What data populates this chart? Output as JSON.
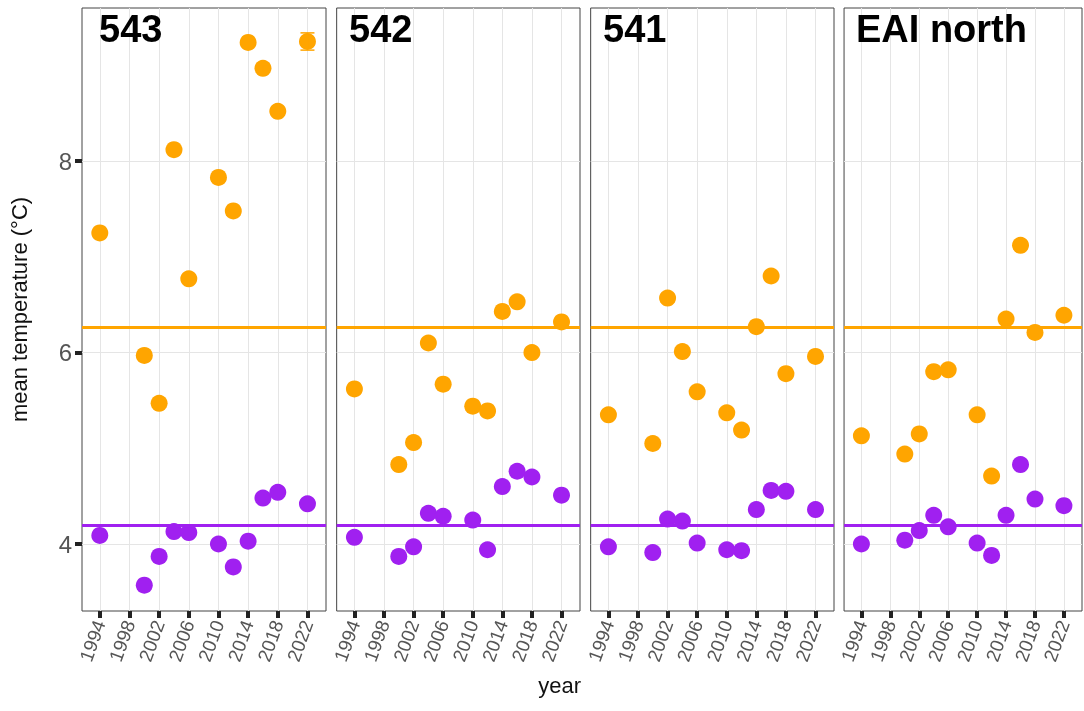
{
  "chart_data": [
    {
      "type": "scatter",
      "title": "543",
      "ylabel": "mean temperature (°C)",
      "x": [
        1994,
        2000,
        2002,
        2004,
        2006,
        2010,
        2012,
        2014,
        2016,
        2018,
        2022
      ],
      "xlim": [
        1991.6,
        2024.5
      ],
      "xticks": [
        1994,
        1998,
        2002,
        2006,
        2010,
        2014,
        2018,
        2022
      ],
      "ylim": [
        3.3,
        9.6
      ],
      "yticks": [
        4,
        6,
        8
      ],
      "grid": true,
      "marker": "circle",
      "series": [
        {
          "color": "#ffa500",
          "values": [
            7.25,
            5.97,
            5.47,
            8.12,
            6.77,
            7.83,
            7.48,
            9.24,
            8.97,
            8.52,
            9.25
          ],
          "errors": [
            null,
            null,
            null,
            null,
            null,
            null,
            null,
            null,
            0.04,
            null,
            0.09
          ]
        },
        {
          "color": "#a020f0",
          "values": [
            4.09,
            3.57,
            3.87,
            4.13,
            4.12,
            4.0,
            3.76,
            4.03,
            4.48,
            4.54,
            4.42
          ]
        }
      ],
      "ref_lines": [
        {
          "axis": "y",
          "value": 6.26,
          "color": "#ffa500"
        },
        {
          "axis": "y",
          "value": 4.2,
          "color": "#a020f0"
        }
      ]
    },
    {
      "type": "scatter",
      "title": "542",
      "xlabel": "year",
      "x": [
        1994,
        2000,
        2002,
        2004,
        2006,
        2010,
        2012,
        2014,
        2016,
        2018,
        2022
      ],
      "xlim": [
        1991.6,
        2024.5
      ],
      "xticks": [
        1994,
        1998,
        2002,
        2006,
        2010,
        2014,
        2018,
        2022
      ],
      "ylim": [
        3.3,
        9.6
      ],
      "yticks": [
        4,
        6,
        8
      ],
      "tick_labels": "x",
      "grid": true,
      "marker": "circle",
      "series": [
        {
          "color": "#ffa500",
          "values": [
            5.62,
            4.83,
            5.06,
            6.1,
            5.67,
            5.44,
            5.39,
            6.43,
            6.53,
            6.0,
            6.32
          ]
        },
        {
          "color": "#a020f0",
          "values": [
            4.07,
            3.87,
            3.97,
            4.32,
            4.29,
            4.25,
            3.94,
            4.6,
            4.76,
            4.7,
            4.51
          ]
        }
      ],
      "ref_lines": [
        {
          "axis": "y",
          "value": 6.26,
          "color": "#ffa500"
        },
        {
          "axis": "y",
          "value": 4.2,
          "color": "#a020f0"
        }
      ]
    },
    {
      "type": "scatter",
      "title": "541",
      "x": [
        1994,
        2000,
        2002,
        2004,
        2006,
        2010,
        2012,
        2014,
        2016,
        2018,
        2022
      ],
      "xlim": [
        1991.6,
        2024.5
      ],
      "xticks": [
        1994,
        1998,
        2002,
        2006,
        2010,
        2014,
        2018,
        2022
      ],
      "ylim": [
        3.3,
        9.6
      ],
      "yticks": [
        4,
        6,
        8
      ],
      "tick_labels": "x",
      "grid": true,
      "marker": "circle",
      "series": [
        {
          "color": "#ffa500",
          "values": [
            5.35,
            5.05,
            6.57,
            6.01,
            5.59,
            5.37,
            5.19,
            6.27,
            6.8,
            5.78,
            5.96
          ]
        },
        {
          "color": "#a020f0",
          "values": [
            3.97,
            3.91,
            4.26,
            4.24,
            4.01,
            3.94,
            3.93,
            4.36,
            4.56,
            4.55,
            4.36
          ]
        }
      ],
      "ref_lines": [
        {
          "axis": "y",
          "value": 6.26,
          "color": "#ffa500"
        },
        {
          "axis": "y",
          "value": 4.2,
          "color": "#a020f0"
        }
      ]
    },
    {
      "type": "scatter",
      "title": "EAI north",
      "x": [
        1994,
        2000,
        2002,
        2004,
        2006,
        2010,
        2012,
        2014,
        2016,
        2018,
        2022
      ],
      "xlim": [
        1991.6,
        2024.5
      ],
      "xticks": [
        1994,
        1998,
        2002,
        2006,
        2010,
        2014,
        2018,
        2022
      ],
      "ylim": [
        3.3,
        9.6
      ],
      "yticks": [
        4,
        6,
        8
      ],
      "tick_labels": "x",
      "grid": true,
      "marker": "circle",
      "series": [
        {
          "color": "#ffa500",
          "values": [
            5.13,
            4.94,
            5.15,
            5.8,
            5.82,
            5.35,
            4.71,
            6.35,
            7.12,
            6.21,
            6.39
          ]
        },
        {
          "color": "#a020f0",
          "values": [
            4.0,
            4.04,
            4.14,
            4.3,
            4.18,
            4.01,
            3.88,
            4.3,
            4.83,
            4.47,
            4.4
          ]
        }
      ],
      "ref_lines": [
        {
          "axis": "y",
          "value": 6.26,
          "color": "#ffa500"
        },
        {
          "axis": "y",
          "value": 4.2,
          "color": "#a020f0"
        }
      ]
    }
  ]
}
